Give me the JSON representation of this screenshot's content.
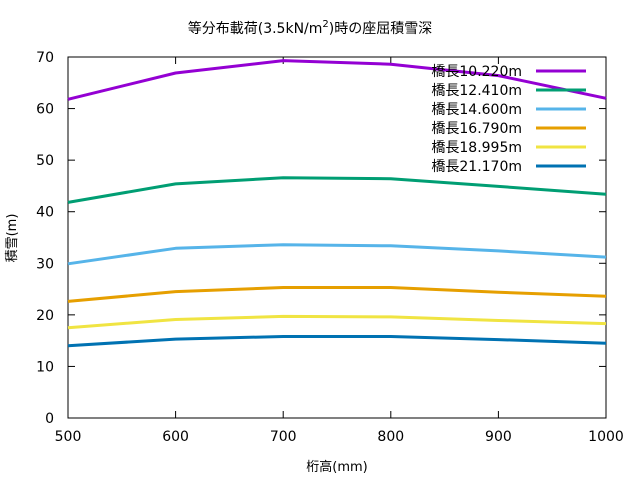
{
  "chart_data": {
    "type": "line",
    "title": "等分布載荷(3.5kN/m",
    "title_sup": "2",
    "title_suffix": ")時の座屈積雪深",
    "xlabel": "桁高(mm)",
    "ylabel": "積雪(m)",
    "xlim": [
      500,
      1000
    ],
    "ylim": [
      0,
      70
    ],
    "xticks": [
      500,
      600,
      700,
      800,
      900,
      1000
    ],
    "xtick_labels": [
      "500",
      "600",
      "700",
      "800",
      "900",
      "1000"
    ],
    "yticks": [
      0,
      10,
      20,
      30,
      40,
      50,
      60,
      70
    ],
    "ytick_labels": [
      "0",
      "10",
      "20",
      "30",
      "40",
      "50",
      "60",
      "70"
    ],
    "grid": false,
    "legend_position": "top-right",
    "x": [
      500,
      600,
      700,
      800,
      900,
      1000
    ],
    "series": [
      {
        "name": "橋長10.220m",
        "color": "#9400d3",
        "values": [
          61.8,
          66.9,
          69.3,
          68.6,
          66.4,
          62.0
        ]
      },
      {
        "name": "橋長12.410m",
        "color": "#009e73",
        "values": [
          41.8,
          45.4,
          46.6,
          46.4,
          44.9,
          43.4
        ]
      },
      {
        "name": "橋長14.600m",
        "color": "#56b4e9",
        "values": [
          29.9,
          32.9,
          33.6,
          33.4,
          32.4,
          31.2
        ]
      },
      {
        "name": "橋長16.790m",
        "color": "#e69f00",
        "values": [
          22.6,
          24.5,
          25.3,
          25.3,
          24.4,
          23.6
        ]
      },
      {
        "name": "橋長18.995m",
        "color": "#f0e442",
        "values": [
          17.5,
          19.1,
          19.7,
          19.6,
          18.9,
          18.3
        ]
      },
      {
        "name": "橋長21.170m",
        "color": "#0072b2",
        "values": [
          14.0,
          15.3,
          15.8,
          15.8,
          15.2,
          14.5
        ]
      }
    ]
  }
}
